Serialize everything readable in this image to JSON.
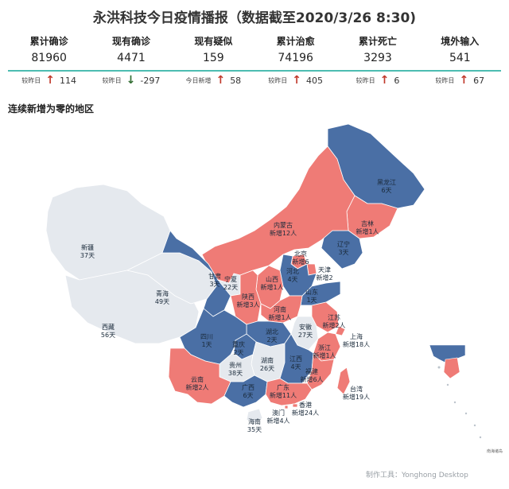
{
  "title": "永洪科技今日疫情播报（数据截至2020/3/26 8:30)",
  "stats": [
    {
      "label": "累计确诊",
      "value": "81960",
      "delta_label": "较昨日",
      "delta_dir": "up",
      "delta": "114"
    },
    {
      "label": "现有确诊",
      "value": "4471",
      "delta_label": "较昨日",
      "delta_dir": "down",
      "delta": "-297"
    },
    {
      "label": "现有疑似",
      "value": "159",
      "delta_label": "今日新增",
      "delta_dir": "up",
      "delta": "58"
    },
    {
      "label": "累计治愈",
      "value": "74196",
      "delta_label": "较昨日",
      "delta_dir": "up",
      "delta": "405"
    },
    {
      "label": "累计死亡",
      "value": "3293",
      "delta_label": "较昨日",
      "delta_dir": "up",
      "delta": "6"
    },
    {
      "label": "境外输入",
      "value": "541",
      "delta_label": "较昨日",
      "delta_dir": "up",
      "delta": "67"
    }
  ],
  "section_title": "连续新增为零的地区",
  "colors": {
    "zero_long": "#e5e9ee",
    "zero": "#4a6fa5",
    "new": "#ef7b76",
    "accent": "#4dbdb1"
  },
  "regions": [
    {
      "name": "黑龙江",
      "text": "6天",
      "status": "zero"
    },
    {
      "name": "吉林",
      "text": "新增1人",
      "status": "new"
    },
    {
      "name": "辽宁",
      "text": "3天",
      "status": "zero"
    },
    {
      "name": "内蒙古",
      "text": "新增12人",
      "status": "new"
    },
    {
      "name": "北京",
      "text": "新增6",
      "status": "new"
    },
    {
      "name": "天津",
      "text": "新增2",
      "status": "new"
    },
    {
      "name": "河北",
      "text": "4天",
      "status": "zero"
    },
    {
      "name": "山西",
      "text": "新增1人",
      "status": "new"
    },
    {
      "name": "山东",
      "text": "1天",
      "status": "zero"
    },
    {
      "name": "新疆",
      "text": "37天",
      "status": "zero_long"
    },
    {
      "name": "西藏",
      "text": "56天",
      "status": "zero_long"
    },
    {
      "name": "青海",
      "text": "49天",
      "status": "zero_long"
    },
    {
      "name": "甘肃",
      "text": "3天",
      "status": "zero"
    },
    {
      "name": "宁夏",
      "text": "22天",
      "status": "zero_long"
    },
    {
      "name": "陕西",
      "text": "新增3人",
      "status": "new"
    },
    {
      "name": "河南",
      "text": "新增1人",
      "status": "new"
    },
    {
      "name": "江苏",
      "text": "新增2人",
      "status": "new"
    },
    {
      "name": "上海",
      "text": "新增18人",
      "status": "new"
    },
    {
      "name": "安徽",
      "text": "27天",
      "status": "zero_long"
    },
    {
      "name": "湖北",
      "text": "2天",
      "status": "zero"
    },
    {
      "name": "四川",
      "text": "1天",
      "status": "zero"
    },
    {
      "name": "重庆",
      "text": "2天",
      "status": "zero"
    },
    {
      "name": "浙江",
      "text": "新增1人",
      "status": "new"
    },
    {
      "name": "湖南",
      "text": "26天",
      "status": "zero_long"
    },
    {
      "name": "江西",
      "text": "4天",
      "status": "zero"
    },
    {
      "name": "贵州",
      "text": "38天",
      "status": "zero_long"
    },
    {
      "name": "云南",
      "text": "新增2人",
      "status": "new"
    },
    {
      "name": "福建",
      "text": "新增6人",
      "status": "new"
    },
    {
      "name": "台湾",
      "text": "新增19人",
      "status": "new"
    },
    {
      "name": "广西",
      "text": "6天",
      "status": "zero"
    },
    {
      "name": "广东",
      "text": "新增11人",
      "status": "new"
    },
    {
      "name": "香港",
      "text": "新增24人",
      "status": "new"
    },
    {
      "name": "澳门",
      "text": "新增4人",
      "status": "new"
    },
    {
      "name": "海南",
      "text": "35天",
      "status": "zero_long"
    }
  ],
  "map_note": "南海诸岛",
  "footer": "制作工具：Yonghong Desktop"
}
